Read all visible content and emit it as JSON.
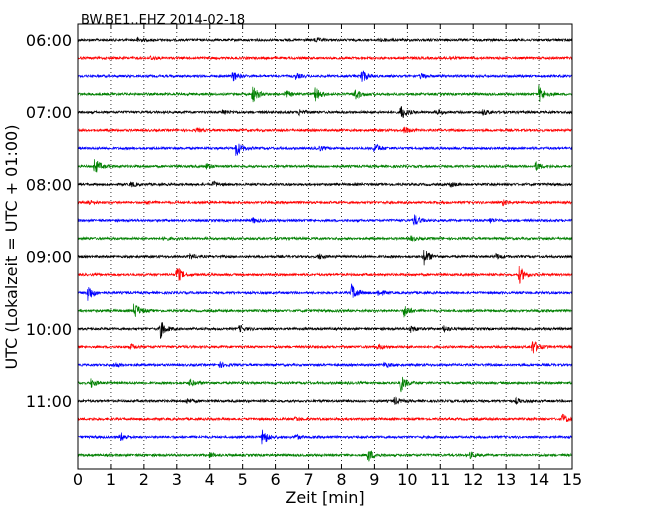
{
  "chart_data": {
    "type": "line",
    "title": "BW.BE1..EHZ 2014-02-18",
    "xlabel": "Zeit  [min]",
    "ylabel": "UTC (Lokalzeit = UTC + 01:00)",
    "xlim": [
      0,
      15
    ],
    "x_ticks": [
      "0",
      "1",
      "2",
      "3",
      "4",
      "5",
      "6",
      "7",
      "8",
      "9",
      "10",
      "11",
      "12",
      "13",
      "14",
      "15"
    ],
    "y_tick_labels": [
      "06:00",
      "07:00",
      "08:00",
      "09:00",
      "10:00",
      "11:00"
    ],
    "grid": "vertical dotted",
    "colors": [
      "#000000",
      "#ff0000",
      "#0000ff",
      "#008000"
    ],
    "traces": [
      {
        "start": "06:00",
        "events": [
          [
            1.8,
            0.25
          ],
          [
            7.2,
            0.25
          ],
          [
            9.2,
            0.2
          ]
        ]
      },
      {
        "start": "06:15",
        "events": [
          [
            2.2,
            0.2
          ],
          [
            11.3,
            0.2
          ]
        ]
      },
      {
        "start": "06:30",
        "events": [
          [
            4.7,
            0.6
          ],
          [
            6.6,
            0.3
          ],
          [
            8.6,
            0.9
          ],
          [
            10.4,
            0.3
          ]
        ]
      },
      {
        "start": "06:45",
        "events": [
          [
            5.3,
            1.0
          ],
          [
            6.3,
            0.4
          ],
          [
            7.2,
            0.8
          ],
          [
            8.4,
            0.7
          ],
          [
            14.0,
            1.0
          ]
        ]
      },
      {
        "start": "07:00",
        "events": [
          [
            4.4,
            0.3
          ],
          [
            6.7,
            0.3
          ],
          [
            9.8,
            0.9
          ],
          [
            10.9,
            0.3
          ],
          [
            12.3,
            0.3
          ]
        ]
      },
      {
        "start": "07:15",
        "events": [
          [
            3.6,
            0.2
          ],
          [
            9.9,
            0.4
          ]
        ]
      },
      {
        "start": "07:30",
        "events": [
          [
            4.8,
            1.0
          ],
          [
            7.3,
            0.3
          ],
          [
            9.0,
            0.6
          ]
        ]
      },
      {
        "start": "07:45",
        "events": [
          [
            0.5,
            1.0
          ],
          [
            3.9,
            0.3
          ],
          [
            13.9,
            0.5
          ]
        ]
      },
      {
        "start": "08:00",
        "events": [
          [
            1.6,
            0.3
          ],
          [
            4.1,
            0.3
          ],
          [
            11.3,
            0.3
          ]
        ]
      },
      {
        "start": "08:15",
        "events": [
          [
            0.3,
            0.3
          ],
          [
            2.1,
            0.2
          ],
          [
            12.9,
            0.3
          ]
        ]
      },
      {
        "start": "08:30",
        "events": [
          [
            5.3,
            0.3
          ],
          [
            10.2,
            0.7
          ],
          [
            12.5,
            0.3
          ]
        ]
      },
      {
        "start": "08:45",
        "events": [
          [
            2.6,
            0.2
          ],
          [
            10.1,
            0.3
          ]
        ]
      },
      {
        "start": "09:00",
        "events": [
          [
            3.4,
            0.3
          ],
          [
            7.3,
            0.3
          ],
          [
            10.5,
            1.0
          ],
          [
            12.7,
            0.3
          ]
        ]
      },
      {
        "start": "09:15",
        "events": [
          [
            3.0,
            1.0
          ],
          [
            13.4,
            1.0
          ]
        ]
      },
      {
        "start": "09:30",
        "events": [
          [
            0.3,
            1.0
          ],
          [
            8.3,
            1.0
          ],
          [
            9.1,
            0.4
          ]
        ]
      },
      {
        "start": "09:45",
        "events": [
          [
            1.7,
            1.0
          ],
          [
            9.9,
            0.7
          ]
        ]
      },
      {
        "start": "10:00",
        "events": [
          [
            2.5,
            1.0
          ],
          [
            4.9,
            0.4
          ],
          [
            10.1,
            0.4
          ],
          [
            11.1,
            0.4
          ]
        ]
      },
      {
        "start": "10:15",
        "events": [
          [
            1.6,
            0.3
          ],
          [
            9.1,
            0.3
          ],
          [
            13.8,
            0.9
          ]
        ]
      },
      {
        "start": "10:30",
        "events": [
          [
            1.1,
            0.3
          ],
          [
            4.3,
            0.3
          ],
          [
            9.3,
            0.3
          ]
        ]
      },
      {
        "start": "10:45",
        "events": [
          [
            0.4,
            0.5
          ],
          [
            3.4,
            0.4
          ],
          [
            9.8,
            1.0
          ]
        ]
      },
      {
        "start": "11:00",
        "events": [
          [
            3.3,
            0.3
          ],
          [
            9.6,
            0.4
          ],
          [
            13.3,
            0.3
          ]
        ]
      },
      {
        "start": "11:15",
        "events": [
          [
            6.6,
            0.2
          ],
          [
            14.7,
            0.6
          ]
        ]
      },
      {
        "start": "11:30",
        "events": [
          [
            1.3,
            0.5
          ],
          [
            5.6,
            1.0
          ],
          [
            6.6,
            0.3
          ]
        ]
      },
      {
        "start": "11:45",
        "events": [
          [
            4.0,
            0.3
          ],
          [
            8.8,
            0.8
          ],
          [
            11.9,
            0.3
          ]
        ]
      }
    ]
  }
}
